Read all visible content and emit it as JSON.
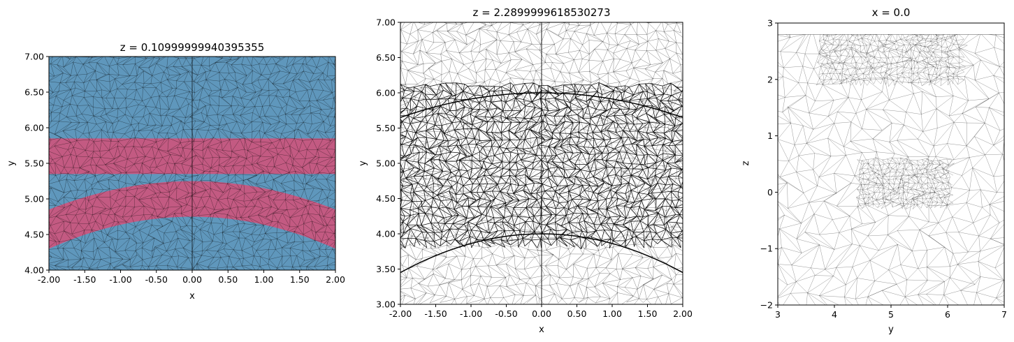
{
  "colors": {
    "blue": "#5f97bc",
    "pink": "#c35a82",
    "mesh": "#000000"
  },
  "chart_data": [
    {
      "type": "mesh-slice",
      "title": "z = 0.10999999940395355",
      "xlabel": "x",
      "ylabel": "y",
      "xlim": [
        -2.0,
        2.0
      ],
      "ylim": [
        4.0,
        7.0
      ],
      "xticks": [
        "-2.00",
        "-1.50",
        "-1.00",
        "-0.50",
        "0.00",
        "0.50",
        "1.00",
        "1.50",
        "2.00"
      ],
      "yticks": [
        "4.00",
        "4.50",
        "5.00",
        "5.50",
        "6.00",
        "6.50",
        "7.00"
      ],
      "regions": [
        {
          "material": "pink",
          "shape": "band",
          "y_from": 5.35,
          "y_to": 5.85
        },
        {
          "material": "pink",
          "shape": "arc-band",
          "center_x": 0.0,
          "top_at_center": [
            4.75,
            5.25
          ],
          "top_at_edges": [
            4.3,
            4.85
          ]
        }
      ],
      "background_material": "blue"
    },
    {
      "type": "mesh-slice",
      "title": "z = 2.2899999618530273",
      "xlabel": "x",
      "ylabel": "y",
      "xlim": [
        -2.0,
        2.0
      ],
      "ylim": [
        3.0,
        7.0
      ],
      "xticks": [
        "-2.00",
        "-1.50",
        "-1.00",
        "-0.50",
        "0.00",
        "0.50",
        "1.00",
        "1.50",
        "2.00"
      ],
      "yticks": [
        "3.00",
        "3.50",
        "4.00",
        "4.50",
        "5.00",
        "5.50",
        "6.00",
        "6.50",
        "7.00"
      ],
      "curves": [
        {
          "center_y": 6.0,
          "edge_y": 5.65
        },
        {
          "center_y": 4.0,
          "edge_y": 3.45
        }
      ]
    },
    {
      "type": "mesh-slice",
      "title": "x = 0.0",
      "xlabel": "y",
      "ylabel": "z",
      "xlim": [
        3,
        7
      ],
      "ylim": [
        -2,
        3
      ],
      "xticks": [
        "3",
        "4",
        "5",
        "6",
        "7"
      ],
      "yticks": [
        "−2",
        "−1",
        "0",
        "1",
        "2",
        "3"
      ],
      "domain_top": 2.8
    }
  ]
}
